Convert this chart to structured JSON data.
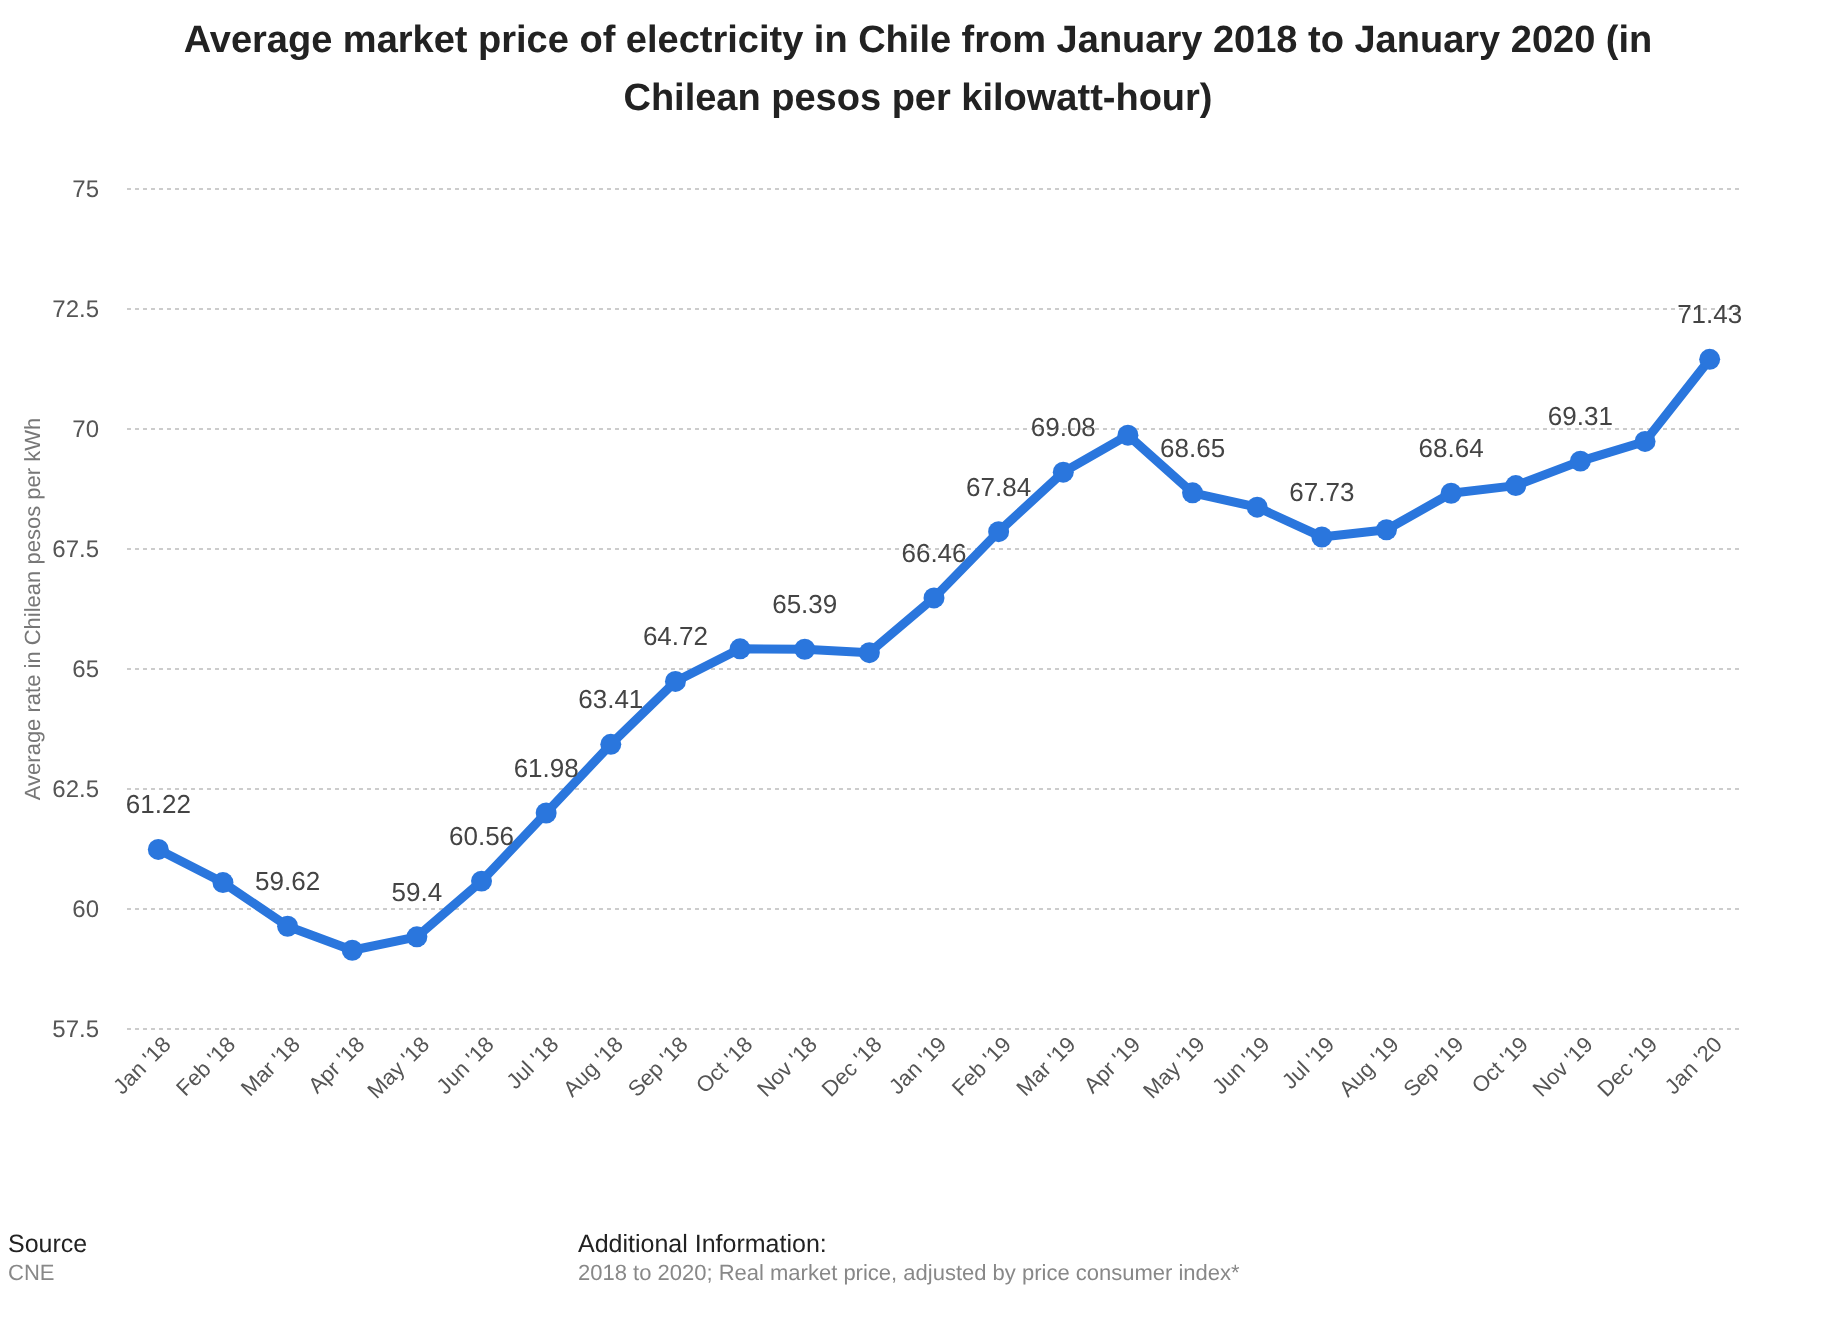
{
  "chart_data": {
    "type": "line",
    "title": "Average market price of electricity in Chile from January 2018 to January 2020 (in Chilean pesos per kilowatt-hour)",
    "ylabel": "Average rate in Chilean pesos per kWh",
    "categories": [
      "Jan '18",
      "Feb '18",
      "Mar '18",
      "Apr '18",
      "May '18",
      "Jun '18",
      "Jul '18",
      "Aug '18",
      "Sep '18",
      "Oct '18",
      "Nov '18",
      "Dec '18",
      "Jan '19",
      "Feb '19",
      "Mar '19",
      "Apr '19",
      "May '19",
      "Jun '19",
      "Jul '19",
      "Aug '19",
      "Sep '19",
      "Oct '19",
      "Nov '19",
      "Dec '19",
      "Jan '20"
    ],
    "series": [
      {
        "color": "#2a76dd",
        "values": [
          61.22,
          60.53,
          59.62,
          59.12,
          59.4,
          60.56,
          61.98,
          63.41,
          64.72,
          65.4,
          65.39,
          65.32,
          66.46,
          67.84,
          69.08,
          69.85,
          68.65,
          68.35,
          67.73,
          67.88,
          68.64,
          68.8,
          69.31,
          69.72,
          71.43
        ],
        "value_labels": [
          "61.22",
          null,
          "59.62",
          null,
          "59.4",
          "60.56",
          "61.98",
          "63.41",
          "64.72",
          null,
          "65.39",
          null,
          "66.46",
          "67.84",
          "69.08",
          null,
          "68.65",
          null,
          "67.73",
          null,
          "68.64",
          null,
          "69.31",
          null,
          "71.43"
        ]
      }
    ],
    "ylim": [
      57.5,
      75
    ],
    "yticks": [
      57.5,
      60,
      62.5,
      65,
      67.5,
      70,
      72.5,
      75
    ],
    "grid": "y",
    "marker": "circle",
    "line_style": "solid",
    "legend": false,
    "annotations": [
      "Source",
      "CNE",
      "Additional Information:",
      "2018 to 2020; Real market price, adjusted by price consumer index*"
    ]
  }
}
